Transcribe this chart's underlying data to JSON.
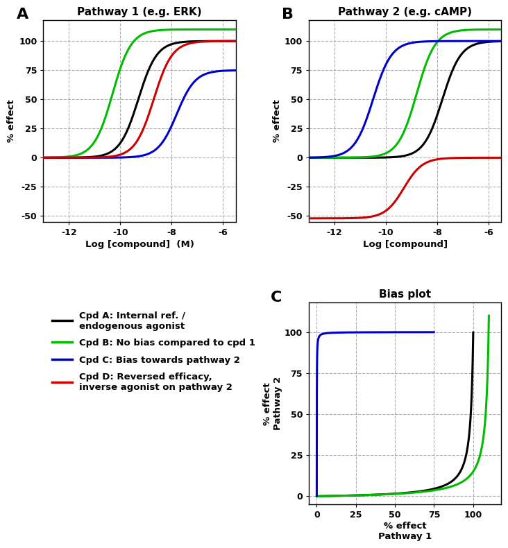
{
  "panel_A_title": "Pathway 1 (e.g. ERK)",
  "panel_B_title": "Pathway 2 (e.g. cAMP)",
  "panel_C_title": "Bias plot",
  "xlabel_AB": "Log [compound]  (M)",
  "xlabel_B": "Log [compound]",
  "ylabel_AB": "% effect",
  "xlabel_C": "% effect\nPathway 1",
  "ylabel_C": "% effect\nPathway 2",
  "colors": {
    "A": "#000000",
    "B": "#00bb00",
    "C": "#0000cc",
    "D": "#cc0000"
  },
  "legend_labels": [
    "Cpd A: Internal ref. /\nendogenous agonist",
    "Cpd B: No bias compared to cpd 1",
    "Cpd C: Bias towards pathway 2",
    "Cpd D: Reversed efficacy,\ninverse agonist on pathway 2"
  ],
  "xmin": -13,
  "xmax": -5.5,
  "xticks": [
    -12,
    -10,
    -8,
    -6
  ],
  "xticklabels": [
    "-12",
    "-10",
    "-8",
    "-6"
  ],
  "panel_A": {
    "cpd_A": {
      "EC50": -9.3,
      "Emax": 100,
      "n": 1.2
    },
    "cpd_B": {
      "EC50": -10.3,
      "Emax": 110,
      "n": 1.2
    },
    "cpd_C": {
      "EC50": -7.8,
      "Emax": 75,
      "n": 1.2
    },
    "cpd_D": {
      "EC50": -8.7,
      "Emax": 100,
      "n": 1.2
    }
  },
  "panel_B": {
    "cpd_A": {
      "EC50": -7.8,
      "Emax": 100,
      "n": 1.2
    },
    "cpd_B": {
      "EC50": -8.8,
      "Emax": 110,
      "n": 1.2
    },
    "cpd_C": {
      "EC50": -10.5,
      "Emax": 100,
      "n": 1.2
    },
    "cpd_D": {
      "EC50": -9.3,
      "Emax": -52,
      "n": 1.2
    }
  },
  "ylim_AB": [
    -55,
    118
  ],
  "yticks_AB": [
    -50,
    -25,
    0,
    25,
    50,
    75,
    100
  ],
  "ylim_C": [
    -5,
    118
  ],
  "yticks_C": [
    0,
    25,
    50,
    75,
    100
  ],
  "xlim_C": [
    -5,
    118
  ],
  "xticks_C": [
    0,
    25,
    50,
    75,
    100
  ],
  "background_color": "#ffffff",
  "grid_color": "#999999",
  "label_A": "A",
  "label_B": "B",
  "label_C": "C"
}
